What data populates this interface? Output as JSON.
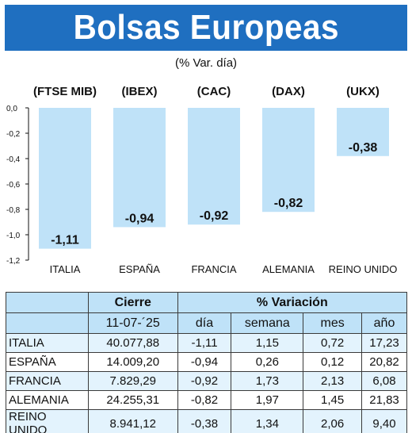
{
  "title": "Bolsas Europeas",
  "subtitle": "(% Var. día)",
  "chart_data": {
    "type": "bar",
    "categories": [
      "ITALIA",
      "ESPAÑA",
      "FRANCIA",
      "ALEMANIA",
      "REINO UNIDO"
    ],
    "indices": [
      "(FTSE MIB)",
      "(IBEX)",
      "(CAC)",
      "(DAX)",
      "(UKX)"
    ],
    "values": [
      -1.11,
      -0.94,
      -0.92,
      -0.82,
      -0.38
    ],
    "value_labels": [
      "-1,11",
      "-0,94",
      "-0,92",
      "-0,82",
      "-0,38"
    ],
    "yticks": [
      "0,0",
      "-0,2",
      "-0,4",
      "-0,6",
      "-0,8",
      "-1,0",
      "-1,2"
    ],
    "ylim": [
      -1.2,
      0
    ],
    "bar_color": "#bfe2f8",
    "grid": false
  },
  "table": {
    "header_cierre": "Cierre",
    "header_variacion": "% Variación",
    "date": "11-07-´25",
    "col_dia": "día",
    "col_semana": "semana",
    "col_mes": "mes",
    "col_ano": "año",
    "rows": [
      {
        "country": "ITALIA",
        "cierre": "40.077,88",
        "dia": "-1,11",
        "semana": "1,15",
        "mes": "0,72",
        "ano": "17,23"
      },
      {
        "country": "ESPAÑA",
        "cierre": "14.009,20",
        "dia": "-0,94",
        "semana": "0,26",
        "mes": "0,12",
        "ano": "20,82"
      },
      {
        "country": "FRANCIA",
        "cierre": "7.829,29",
        "dia": "-0,92",
        "semana": "1,73",
        "mes": "2,13",
        "ano": "6,08"
      },
      {
        "country": "ALEMANIA",
        "cierre": "24.255,31",
        "dia": "-0,82",
        "semana": "1,97",
        "mes": "1,45",
        "ano": "21,83"
      },
      {
        "country": "REINO UNIDO",
        "cierre": "8.941,12",
        "dia": "-0,38",
        "semana": "1,34",
        "mes": "2,06",
        "ano": "9,40"
      }
    ]
  },
  "colors": {
    "banner": "#1f6fc0",
    "bar": "#bfe2f8",
    "table_header": "#bfe2f8",
    "table_row_alt": "#e3f3fd"
  }
}
